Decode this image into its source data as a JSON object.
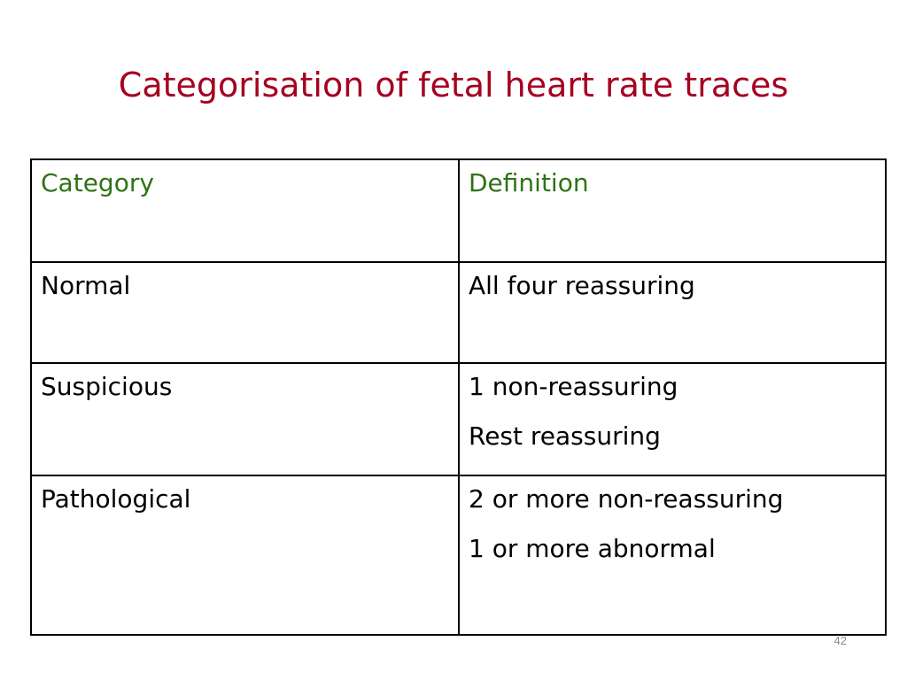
{
  "slide": {
    "title": "Categorisation of fetal heart rate traces",
    "page_number": "42"
  },
  "table": {
    "headers": [
      "Category",
      "Definition"
    ],
    "rows": [
      {
        "category": "Normal",
        "definition": [
          "All four reassuring"
        ]
      },
      {
        "category": "Suspicious",
        "definition": [
          "1 non-reassuring",
          "Rest reassuring"
        ]
      },
      {
        "category": "Pathological",
        "definition": [
          "2 or more non-reassuring",
          "1 or more abnormal"
        ]
      }
    ]
  },
  "colors": {
    "title": "#a50021",
    "header_text": "#2e7316",
    "body_text": "#000000",
    "border": "#000000"
  }
}
